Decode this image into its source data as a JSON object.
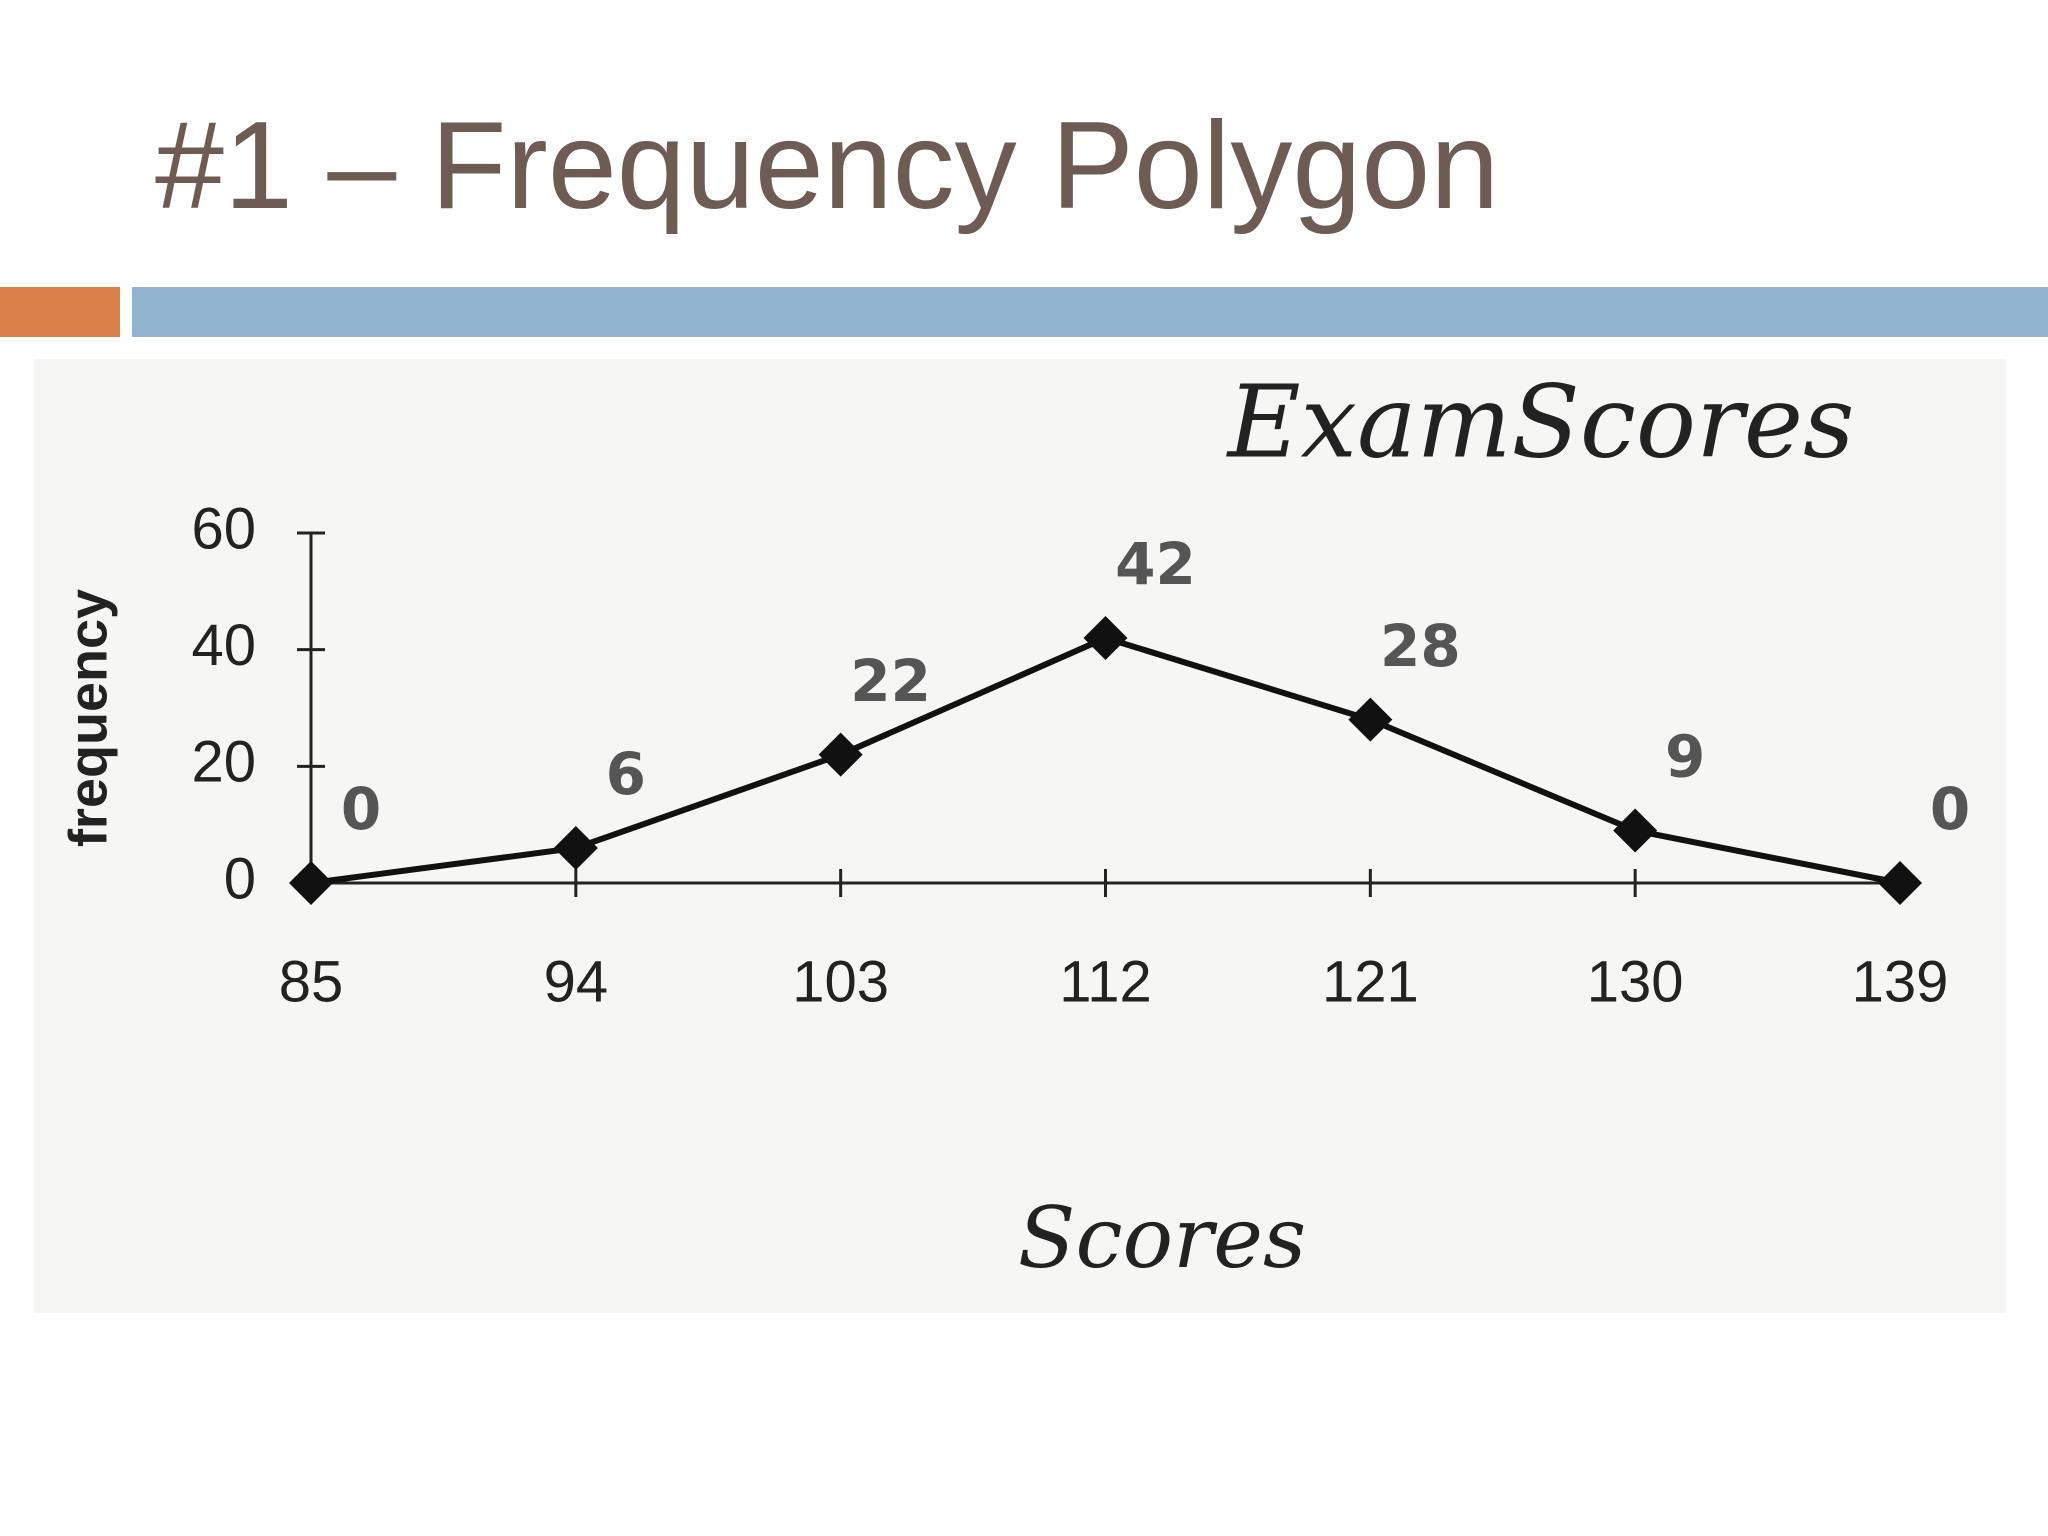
{
  "slide_title": "#1 – Frequency Polygon",
  "chart_data": {
    "type": "line",
    "title": "ExamScores",
    "x_label": "Scores",
    "y_label": "frequency",
    "x": [
      85,
      94,
      103,
      112,
      121,
      130,
      139
    ],
    "values": [
      0,
      6,
      22,
      42,
      28,
      9,
      0
    ],
    "color": "#111111",
    "xlim": [
      85,
      139
    ],
    "xticks": [
      85,
      94,
      103,
      112,
      121,
      130,
      139
    ],
    "ylim": [
      0,
      60
    ],
    "yticks": [
      0,
      20,
      40,
      60
    ],
    "grid": false
  }
}
